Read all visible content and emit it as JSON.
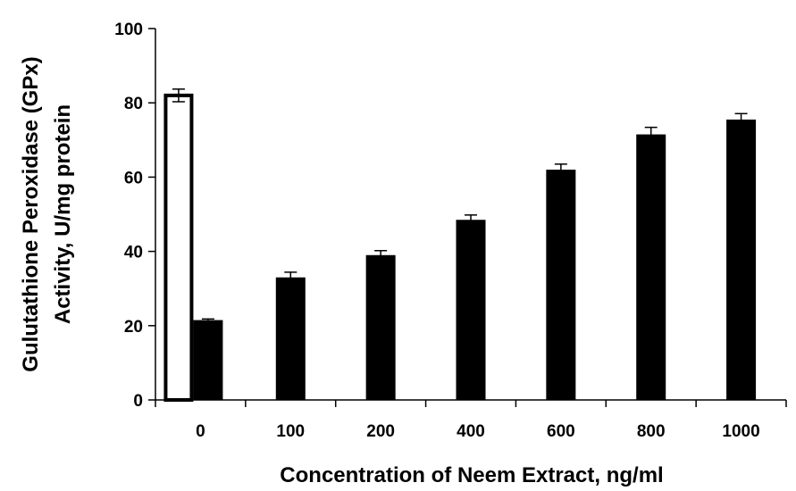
{
  "chart_data": {
    "type": "bar",
    "title": "",
    "xlabel": "Concentration of Neem Extract, ng/ml",
    "ylabel_line1": "Gulutathione Peroxidase (GPx)",
    "ylabel_line2": "Activity, U/mg protein",
    "ylim": [
      0,
      100
    ],
    "yticks": [
      0,
      20,
      40,
      60,
      80,
      100
    ],
    "categories": [
      "0",
      "100",
      "200",
      "400",
      "600",
      "800",
      "1000"
    ],
    "series": [
      {
        "style": "open",
        "values": [
          82,
          null,
          null,
          null,
          null,
          null,
          null
        ],
        "errors": [
          1.7,
          null,
          null,
          null,
          null,
          null,
          null
        ]
      },
      {
        "style": "filled",
        "values": [
          21.5,
          33,
          39,
          48.5,
          62,
          71.5,
          75.5
        ],
        "errors": [
          0.3,
          1.4,
          1.2,
          1.3,
          1.5,
          1.9,
          1.6
        ]
      }
    ],
    "grid": false,
    "legend": "none",
    "colors": {
      "filled": "#000000",
      "open": "#ffffff",
      "axis": "#000000"
    }
  }
}
